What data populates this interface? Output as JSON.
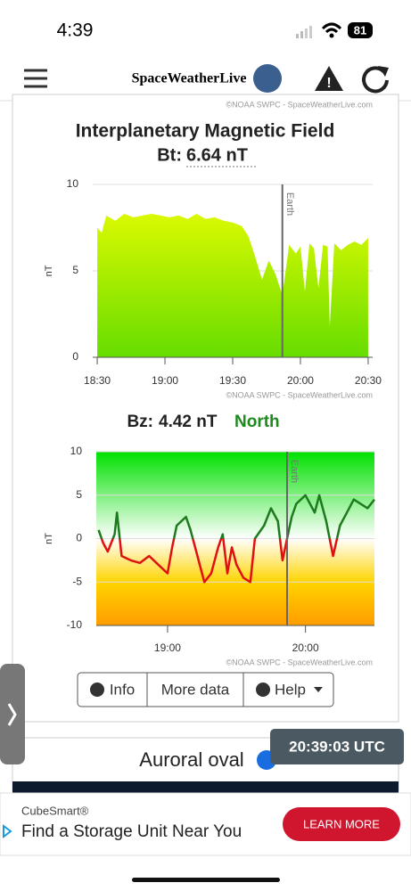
{
  "status": {
    "time": "4:39",
    "battery": "81"
  },
  "header": {
    "brand": "SpaceWeatherLive"
  },
  "credit": "©NOAA SWPC - SpaceWeatherLive.com",
  "panel": {
    "title": "Interplanetary Magnetic Field",
    "bt_label": "Bt:",
    "bt_value": "6.64 nT",
    "bz_label": "Bz:",
    "bz_value": "4.42 nT",
    "bz_direction": "North"
  },
  "chart_data": [
    {
      "type": "area",
      "ylabel": "nT",
      "xlim": [
        "18:28",
        "20:32"
      ],
      "ylim": [
        0,
        10
      ],
      "yticks": [
        0,
        5,
        10
      ],
      "xticks": [
        "18:30",
        "19:00",
        "19:30",
        "20:00",
        "20:30"
      ],
      "grid": true,
      "colors": [
        "#f2ff00",
        "#66dd00"
      ],
      "annotations": [
        {
          "text": "Earth",
          "x": "19:52"
        }
      ],
      "x": [
        "18:30",
        "18:32",
        "18:34",
        "18:38",
        "18:42",
        "18:46",
        "18:50",
        "18:54",
        "18:58",
        "19:02",
        "19:06",
        "19:10",
        "19:14",
        "19:18",
        "19:22",
        "19:26",
        "19:30",
        "19:34",
        "19:37",
        "19:40",
        "19:43",
        "19:46",
        "19:49",
        "19:52",
        "19:55",
        "19:58",
        "20:00",
        "20:02",
        "20:04",
        "20:06",
        "20:08",
        "20:10",
        "20:12",
        "20:13",
        "20:15",
        "20:18",
        "20:21",
        "20:24",
        "20:27",
        "20:30"
      ],
      "values": [
        7.5,
        7.2,
        8.2,
        7.9,
        8.3,
        8.1,
        8.2,
        8.3,
        8.2,
        8.1,
        8.2,
        8.0,
        8.3,
        8.0,
        8.1,
        7.9,
        7.8,
        7.6,
        7.0,
        5.8,
        4.5,
        5.6,
        4.8,
        3.6,
        6.5,
        6.0,
        6.4,
        3.8,
        6.6,
        6.3,
        4.0,
        6.5,
        6.4,
        1.8,
        6.6,
        6.2,
        6.5,
        6.7,
        6.5,
        6.9
      ]
    },
    {
      "type": "line",
      "ylabel": "nT",
      "xlim": [
        "18:29",
        "20:30"
      ],
      "ylim": [
        -10,
        10
      ],
      "yticks": [
        -10,
        -5,
        0,
        5,
        10
      ],
      "xticks": [
        "19:00",
        "20:00"
      ],
      "grid": true,
      "colors": [
        "#1e7a1e",
        "#e01010"
      ],
      "annotations": [
        {
          "text": "Earth",
          "x": "19:52"
        }
      ],
      "x": [
        "18:30",
        "18:32",
        "18:34",
        "18:37",
        "18:38",
        "18:40",
        "18:44",
        "18:48",
        "18:52",
        "18:56",
        "19:00",
        "19:02",
        "19:04",
        "19:08",
        "19:10",
        "19:12",
        "19:16",
        "19:19",
        "19:22",
        "19:24",
        "19:26",
        "19:28",
        "19:30",
        "19:33",
        "19:36",
        "19:38",
        "19:42",
        "19:45",
        "19:48",
        "19:50",
        "19:52",
        "19:54",
        "19:56",
        "20:00",
        "20:04",
        "20:06",
        "20:09",
        "20:12",
        "20:15",
        "20:18",
        "20:21",
        "20:24",
        "20:27",
        "20:30"
      ],
      "values": [
        1,
        -0.5,
        -1.5,
        0.5,
        3,
        -2,
        -2.5,
        -2.8,
        -2,
        -3,
        -4,
        -1,
        1.5,
        2.5,
        1,
        -1,
        -5,
        -4,
        -1,
        0.5,
        -4,
        -1,
        -3,
        -4.5,
        -5,
        0,
        1.5,
        3.5,
        2,
        -2.5,
        0,
        2.5,
        4,
        5,
        3,
        5,
        2,
        -2,
        1.5,
        3,
        4.5,
        4,
        3.5,
        4.5
      ]
    }
  ],
  "buttons": [
    "Info",
    "More data",
    "Help"
  ],
  "aurora_title": "Auroral oval",
  "utc_time": "20:39:03 UTC",
  "ad": {
    "brand": "CubeSmart®",
    "headline": "Find a Storage Unit Near You",
    "cta": "LEARN MORE"
  }
}
